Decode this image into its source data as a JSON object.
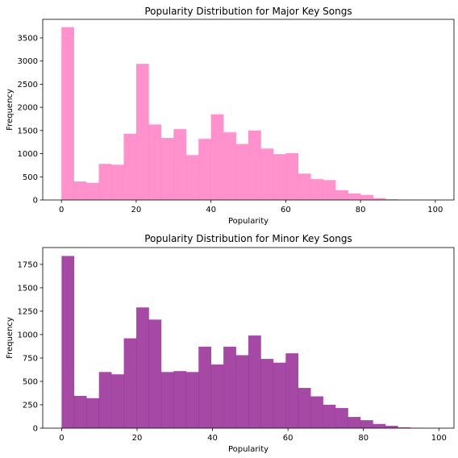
{
  "chart_data": [
    {
      "type": "bar",
      "title": "Popularity Distribution for Major Key Songs",
      "xlabel": "Popularity",
      "ylabel": "Frequency",
      "color": "#ff77c0",
      "xlim": [
        -5,
        105
      ],
      "ylim": [
        0,
        3900
      ],
      "xticks": [
        0,
        20,
        40,
        60,
        80,
        100
      ],
      "yticks": [
        0,
        500,
        1000,
        1500,
        2000,
        2500,
        3000,
        3500
      ],
      "bin_edges": [
        0,
        3.33,
        6.67,
        10,
        13.33,
        16.67,
        20,
        23.33,
        26.67,
        30,
        33.33,
        36.67,
        40,
        43.33,
        46.67,
        50,
        53.33,
        56.67,
        60,
        63.33,
        66.67,
        70,
        73.33,
        76.67,
        80,
        83.33,
        86.67,
        90,
        93.33,
        96.67,
        100
      ],
      "values": [
        3730,
        400,
        370,
        780,
        760,
        1430,
        2940,
        1630,
        1340,
        1530,
        970,
        1320,
        1850,
        1460,
        1210,
        1500,
        1110,
        990,
        1010,
        570,
        450,
        430,
        210,
        140,
        110,
        40,
        15,
        5,
        2,
        1
      ]
    },
    {
      "type": "bar",
      "title": "Popularity Distribution for Minor Key Songs",
      "xlabel": "Popularity",
      "ylabel": "Frequency",
      "color": "#8e1c8e",
      "xlim": [
        -5,
        104
      ],
      "ylim": [
        0,
        1930
      ],
      "xticks": [
        0,
        20,
        40,
        60,
        80,
        100
      ],
      "yticks": [
        0,
        250,
        500,
        750,
        1000,
        1250,
        1500,
        1750
      ],
      "bin_edges": [
        0,
        3.3,
        6.6,
        9.9,
        13.2,
        16.5,
        19.8,
        23.1,
        26.4,
        29.7,
        33,
        36.3,
        39.6,
        42.9,
        46.2,
        49.5,
        52.8,
        56.1,
        59.4,
        62.7,
        66,
        69.3,
        72.6,
        75.9,
        79.2,
        82.5,
        85.8,
        89.1,
        92.4,
        95.7,
        99
      ],
      "values": [
        1840,
        345,
        320,
        600,
        575,
        960,
        1290,
        1160,
        600,
        610,
        600,
        870,
        680,
        870,
        780,
        990,
        740,
        700,
        800,
        430,
        340,
        250,
        215,
        120,
        85,
        45,
        25,
        8,
        3,
        1
      ]
    }
  ]
}
